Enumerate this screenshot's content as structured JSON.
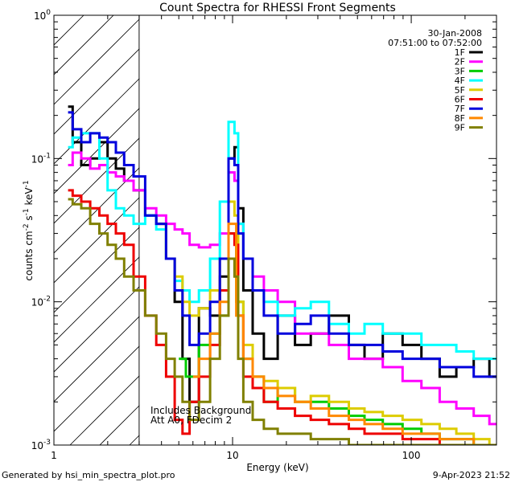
{
  "chart_data": {
    "type": "line",
    "title": "Count Spectra for RHESSI Front Segments",
    "xlabel": "Energy (keV)",
    "ylabel_main": "counts cm",
    "ylabel_exp1": "-2",
    "ylabel_mid": " s",
    "ylabel_exp2": "-1",
    "ylabel_end": " keV",
    "ylabel_exp3": "-1",
    "xscale": "log",
    "yscale": "log",
    "xlim": [
      1,
      300
    ],
    "ylim": [
      0.001,
      1
    ],
    "x_ticks": [
      {
        "value": 1,
        "label": "1"
      },
      {
        "value": 10,
        "label": "10"
      },
      {
        "value": 100,
        "label": "100"
      }
    ],
    "y_ticks": [
      {
        "value": 0.001,
        "base": "10",
        "exp": "-3"
      },
      {
        "value": 0.01,
        "base": "10",
        "exp": "-2"
      },
      {
        "value": 0.1,
        "base": "10",
        "exp": "-1"
      },
      {
        "value": 1,
        "base": "10",
        "exp": "0"
      }
    ],
    "date_label": "30-Jan-2008",
    "time_label": "07:51:00 to 07:52:00",
    "annotation_line1": "Includes Background",
    "annotation_line2": "Att A0, FDecim 2",
    "hatched_range_keV": [
      1,
      3
    ],
    "series": [
      {
        "name": "1F",
        "color": "#000000",
        "x": [
          1.2,
          1.35,
          1.5,
          1.7,
          1.9,
          2.1,
          2.35,
          2.6,
          3.0,
          3.5,
          4.0,
          4.5,
          5.0,
          5.5,
          6.0,
          7.0,
          8.0,
          9.0,
          10.0,
          10.5,
          11.0,
          12.0,
          14.0,
          16.0,
          20.0,
          25.0,
          30.0,
          40.0,
          50.0,
          60.0,
          80.0,
          100.0,
          130.0,
          160.0,
          200.0,
          250.0,
          300.0
        ],
        "values": [
          0.23,
          0.13,
          0.09,
          0.1,
          0.13,
          0.1,
          0.085,
          0.07,
          0.06,
          0.04,
          0.035,
          0.02,
          0.01,
          0.004,
          0.002,
          0.009,
          0.008,
          0.015,
          0.1,
          0.12,
          0.045,
          0.012,
          0.006,
          0.004,
          0.008,
          0.005,
          0.006,
          0.008,
          0.005,
          0.004,
          0.006,
          0.005,
          0.004,
          0.003,
          0.0035,
          0.004,
          0.003
        ]
      },
      {
        "name": "2F",
        "color": "#ff00ff",
        "x": [
          1.2,
          1.35,
          1.5,
          1.7,
          1.9,
          2.1,
          2.35,
          2.6,
          3.0,
          3.5,
          4.0,
          4.5,
          5.0,
          5.5,
          6.0,
          7.0,
          8.0,
          9.0,
          10.0,
          10.5,
          11.0,
          12.0,
          14.0,
          16.0,
          20.0,
          25.0,
          30.0,
          40.0,
          50.0,
          60.0,
          80.0,
          100.0,
          130.0,
          160.0,
          200.0,
          250.0,
          300.0
        ],
        "values": [
          0.09,
          0.11,
          0.1,
          0.085,
          0.09,
          0.08,
          0.075,
          0.07,
          0.06,
          0.045,
          0.04,
          0.035,
          0.032,
          0.03,
          0.025,
          0.024,
          0.025,
          0.03,
          0.08,
          0.07,
          0.035,
          0.02,
          0.015,
          0.012,
          0.01,
          0.006,
          0.006,
          0.005,
          0.004,
          0.004,
          0.0035,
          0.0028,
          0.0025,
          0.002,
          0.0018,
          0.0016,
          0.0014
        ]
      },
      {
        "name": "3F",
        "color": "#00cc00",
        "x": [
          5.0,
          6.0,
          7.0,
          8.0,
          9.0,
          10.0,
          11.0,
          12.0,
          14.0,
          16.0,
          20.0,
          25.0,
          30.0,
          40.0,
          50.0,
          60.0,
          80.0,
          100.0,
          130.0,
          160.0,
          200.0,
          250.0,
          300.0
        ],
        "values": [
          0.004,
          0.003,
          0.005,
          0.006,
          0.008,
          0.03,
          0.01,
          0.004,
          0.003,
          0.002,
          0.0025,
          0.002,
          0.002,
          0.0018,
          0.0016,
          0.0015,
          0.0014,
          0.0013,
          0.0012,
          0.0011,
          0.0011,
          0.001,
          0.001
        ]
      },
      {
        "name": "4F",
        "color": "#00ffff",
        "x": [
          1.2,
          1.35,
          1.5,
          1.7,
          1.9,
          2.1,
          2.35,
          2.6,
          3.0,
          3.5,
          4.0,
          4.5,
          5.0,
          5.5,
          6.0,
          7.0,
          8.0,
          9.0,
          10.0,
          10.5,
          11.0,
          12.0,
          14.0,
          16.0,
          20.0,
          25.0,
          30.0,
          40.0,
          50.0,
          60.0,
          80.0,
          100.0,
          130.0,
          160.0,
          200.0,
          250.0,
          300.0
        ],
        "values": [
          0.12,
          0.14,
          0.15,
          0.15,
          0.1,
          0.06,
          0.045,
          0.04,
          0.035,
          0.04,
          0.032,
          0.02,
          0.014,
          0.012,
          0.01,
          0.012,
          0.02,
          0.05,
          0.18,
          0.15,
          0.035,
          0.02,
          0.012,
          0.01,
          0.008,
          0.009,
          0.01,
          0.007,
          0.006,
          0.007,
          0.006,
          0.006,
          0.005,
          0.005,
          0.0045,
          0.004,
          0.004
        ]
      },
      {
        "name": "5F",
        "color": "#ddcc00",
        "x": [
          4.0,
          4.5,
          5.0,
          5.5,
          6.0,
          7.0,
          8.0,
          9.0,
          10.0,
          10.5,
          11.0,
          12.0,
          14.0,
          16.0,
          20.0,
          25.0,
          30.0,
          40.0,
          50.0,
          60.0,
          80.0,
          100.0,
          130.0,
          160.0,
          200.0,
          250.0,
          300.0
        ],
        "values": [
          0.035,
          0.02,
          0.015,
          0.01,
          0.008,
          0.009,
          0.012,
          0.02,
          0.05,
          0.04,
          0.01,
          0.005,
          0.003,
          0.0028,
          0.0025,
          0.002,
          0.0022,
          0.002,
          0.0018,
          0.0017,
          0.0016,
          0.0015,
          0.0014,
          0.0013,
          0.0012,
          0.0011,
          0.001
        ]
      },
      {
        "name": "6F",
        "color": "#ee0000",
        "x": [
          1.2,
          1.35,
          1.5,
          1.7,
          1.9,
          2.1,
          2.35,
          2.6,
          3.0,
          3.5,
          4.0,
          4.5,
          5.0,
          5.5,
          6.0,
          7.0,
          8.0,
          9.0,
          10.0,
          10.5,
          11.0,
          12.0,
          14.0,
          16.0,
          20.0,
          25.0,
          30.0,
          40.0,
          50.0,
          60.0,
          80.0,
          100.0,
          130.0,
          160.0,
          200.0,
          250.0,
          300.0
        ],
        "values": [
          0.06,
          0.055,
          0.05,
          0.045,
          0.04,
          0.035,
          0.03,
          0.025,
          0.015,
          0.008,
          0.005,
          0.003,
          0.0015,
          0.0012,
          0.002,
          0.003,
          0.005,
          0.012,
          0.03,
          0.025,
          0.008,
          0.003,
          0.0025,
          0.002,
          0.0018,
          0.0016,
          0.0015,
          0.0014,
          0.0013,
          0.0012,
          0.0012,
          0.0011,
          0.0011,
          0.001,
          0.001,
          0.001,
          0.001
        ]
      },
      {
        "name": "7F",
        "color": "#0000dd",
        "x": [
          1.2,
          1.35,
          1.5,
          1.7,
          1.9,
          2.1,
          2.35,
          2.6,
          3.0,
          3.5,
          4.0,
          4.5,
          5.0,
          5.5,
          6.0,
          7.0,
          8.0,
          9.0,
          10.0,
          10.5,
          11.0,
          12.0,
          14.0,
          16.0,
          20.0,
          25.0,
          30.0,
          40.0,
          50.0,
          60.0,
          80.0,
          100.0,
          130.0,
          160.0,
          200.0,
          250.0,
          300.0
        ],
        "values": [
          0.21,
          0.16,
          0.13,
          0.15,
          0.14,
          0.13,
          0.11,
          0.09,
          0.075,
          0.04,
          0.035,
          0.02,
          0.012,
          0.008,
          0.005,
          0.006,
          0.01,
          0.02,
          0.1,
          0.09,
          0.03,
          0.02,
          0.012,
          0.008,
          0.006,
          0.007,
          0.008,
          0.006,
          0.005,
          0.005,
          0.0045,
          0.004,
          0.004,
          0.0035,
          0.0035,
          0.003,
          0.003
        ]
      },
      {
        "name": "8F",
        "color": "#ff8800",
        "x": [
          6.0,
          7.0,
          8.0,
          9.0,
          10.0,
          11.0,
          12.0,
          14.0,
          16.0,
          20.0,
          25.0,
          30.0,
          40.0,
          50.0,
          60.0,
          80.0,
          100.0,
          130.0,
          160.0,
          200.0,
          250.0,
          300.0
        ],
        "values": [
          0.003,
          0.004,
          0.006,
          0.01,
          0.035,
          0.008,
          0.004,
          0.003,
          0.0025,
          0.0022,
          0.002,
          0.0018,
          0.0016,
          0.0015,
          0.0014,
          0.0013,
          0.0012,
          0.0012,
          0.0011,
          0.0011,
          0.001,
          0.001
        ]
      },
      {
        "name": "9F",
        "color": "#808000",
        "x": [
          1.2,
          1.35,
          1.5,
          1.7,
          1.9,
          2.1,
          2.35,
          2.6,
          3.0,
          3.5,
          4.0,
          4.5,
          5.0,
          5.5,
          6.0,
          7.0,
          8.0,
          9.0,
          10.0,
          10.5,
          11.0,
          12.0,
          14.0,
          16.0,
          20.0,
          25.0,
          30.0,
          40.0,
          50.0,
          60.0,
          80.0,
          100.0,
          130.0,
          160.0,
          200.0,
          250.0,
          300.0
        ],
        "values": [
          0.052,
          0.048,
          0.045,
          0.035,
          0.03,
          0.025,
          0.02,
          0.015,
          0.012,
          0.008,
          0.006,
          0.004,
          0.003,
          0.002,
          0.0015,
          0.002,
          0.004,
          0.008,
          0.02,
          0.015,
          0.004,
          0.002,
          0.0015,
          0.0013,
          0.0012,
          0.0012,
          0.0011,
          0.0011,
          0.001,
          0.001,
          0.001,
          0.001,
          0.001,
          0.001,
          0.001,
          0.001,
          0.001
        ]
      }
    ]
  },
  "footer": {
    "generated_by": "Generated by hsi_min_spectra_plot.pro",
    "timestamp": "9-Apr-2023 21:52"
  }
}
